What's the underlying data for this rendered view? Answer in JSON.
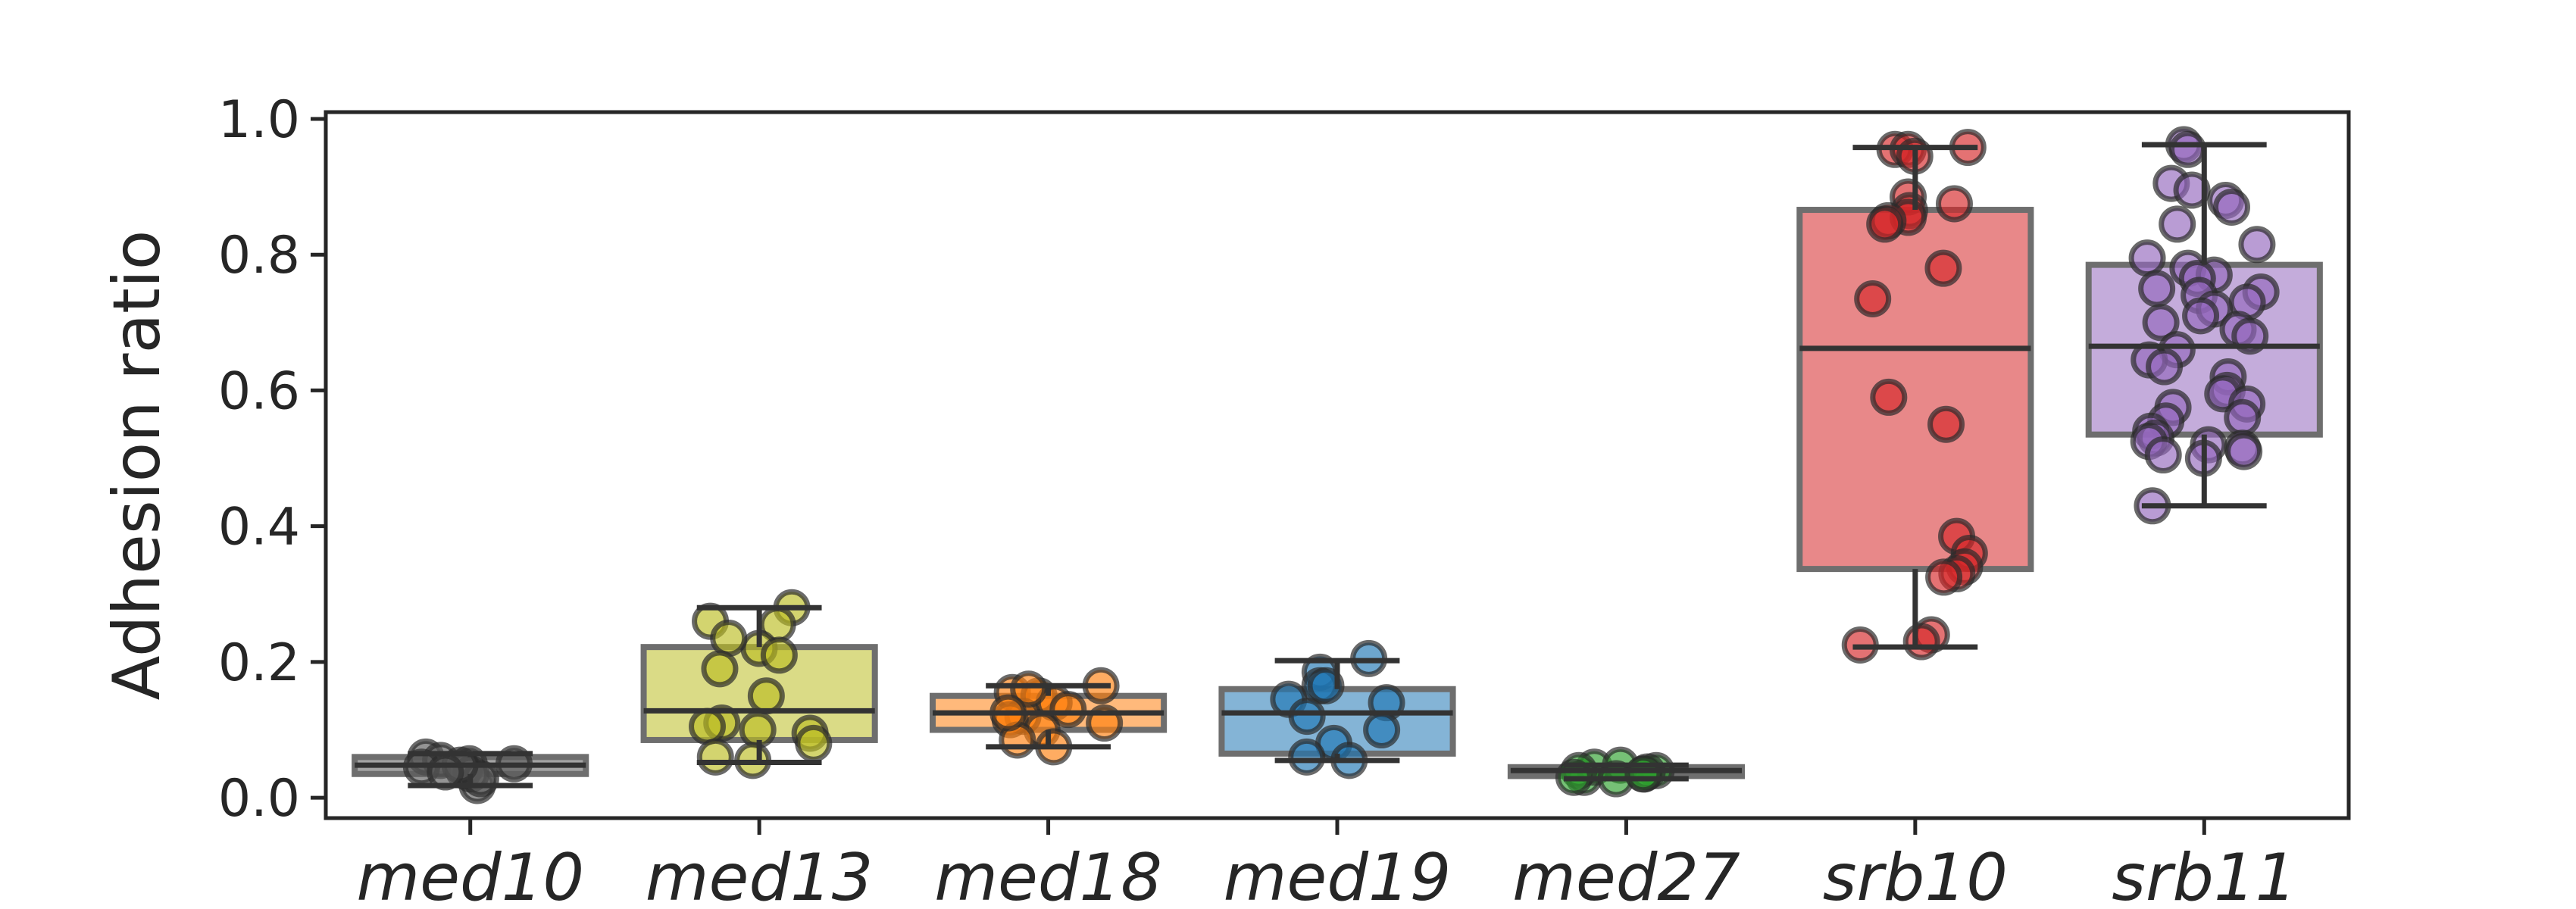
{
  "chart_data": {
    "type": "box",
    "title": "",
    "xlabel": "",
    "ylabel": "Adhesion ratio",
    "ylim": [
      -0.03,
      1.01
    ],
    "yticks": [
      0.0,
      0.2,
      0.4,
      0.6,
      0.8,
      1.0
    ],
    "ytick_labels": [
      "0.0",
      "0.2",
      "0.4",
      "0.6",
      "0.8",
      "1.0"
    ],
    "grid": false,
    "categories": [
      "med10",
      "med13",
      "med18",
      "med19",
      "med27",
      "srb10",
      "srb11"
    ],
    "colors": [
      "#5a5a5a",
      "#bcbd22",
      "#ff7f0e",
      "#1f77b4",
      "#2ca02c",
      "#d62728",
      "#9467bd"
    ],
    "boxes": [
      {
        "category": "med10",
        "q1": 0.035,
        "median": 0.048,
        "q3": 0.06,
        "whisker_low": 0.018,
        "whisker_high": 0.065
      },
      {
        "category": "med13",
        "q1": 0.085,
        "median": 0.128,
        "q3": 0.222,
        "whisker_low": 0.052,
        "whisker_high": 0.28
      },
      {
        "category": "med18",
        "q1": 0.1,
        "median": 0.125,
        "q3": 0.15,
        "whisker_low": 0.075,
        "whisker_high": 0.165
      },
      {
        "category": "med19",
        "q1": 0.065,
        "median": 0.125,
        "q3": 0.16,
        "whisker_low": 0.055,
        "whisker_high": 0.202
      },
      {
        "category": "med27",
        "q1": 0.032,
        "median": 0.04,
        "q3": 0.045,
        "whisker_low": 0.028,
        "whisker_high": 0.048
      },
      {
        "category": "srb10",
        "q1": 0.337,
        "median": 0.662,
        "q3": 0.866,
        "whisker_low": 0.222,
        "whisker_high": 0.958
      },
      {
        "category": "srb11",
        "q1": 0.535,
        "median": 0.665,
        "q3": 0.785,
        "whisker_low": 0.43,
        "whisker_high": 0.962
      }
    ],
    "points": [
      {
        "category": "med10",
        "values": [
          0.05,
          0.018,
          0.06,
          0.055,
          0.04,
          0.035,
          0.045,
          0.05,
          0.028,
          0.048,
          0.038
        ]
      },
      {
        "category": "med13",
        "values": [
          0.28,
          0.255,
          0.26,
          0.22,
          0.235,
          0.21,
          0.19,
          0.15,
          0.1,
          0.11,
          0.105,
          0.095,
          0.08,
          0.06,
          0.055
        ]
      },
      {
        "category": "med18",
        "values": [
          0.165,
          0.155,
          0.15,
          0.14,
          0.13,
          0.12,
          0.115,
          0.11,
          0.1,
          0.085,
          0.075,
          0.16,
          0.125
        ]
      },
      {
        "category": "med19",
        "values": [
          0.205,
          0.185,
          0.165,
          0.145,
          0.14,
          0.12,
          0.1,
          0.08,
          0.06,
          0.055,
          0.165
        ]
      },
      {
        "category": "med27",
        "values": [
          0.04,
          0.035,
          0.03,
          0.045,
          0.048,
          0.04,
          0.03,
          0.028,
          0.038,
          0.035
        ]
      },
      {
        "category": "srb10",
        "values": [
          0.958,
          0.955,
          0.955,
          0.945,
          0.885,
          0.875,
          0.865,
          0.855,
          0.85,
          0.845,
          0.78,
          0.735,
          0.59,
          0.55,
          0.385,
          0.36,
          0.34,
          0.33,
          0.325,
          0.24,
          0.23,
          0.225
        ]
      },
      {
        "category": "srb11",
        "values": [
          0.962,
          0.955,
          0.905,
          0.895,
          0.88,
          0.87,
          0.845,
          0.815,
          0.795,
          0.78,
          0.77,
          0.765,
          0.75,
          0.745,
          0.74,
          0.73,
          0.72,
          0.71,
          0.7,
          0.69,
          0.68,
          0.66,
          0.645,
          0.635,
          0.62,
          0.6,
          0.595,
          0.58,
          0.575,
          0.56,
          0.555,
          0.54,
          0.53,
          0.525,
          0.52,
          0.515,
          0.51,
          0.505,
          0.5,
          0.43
        ]
      }
    ]
  }
}
